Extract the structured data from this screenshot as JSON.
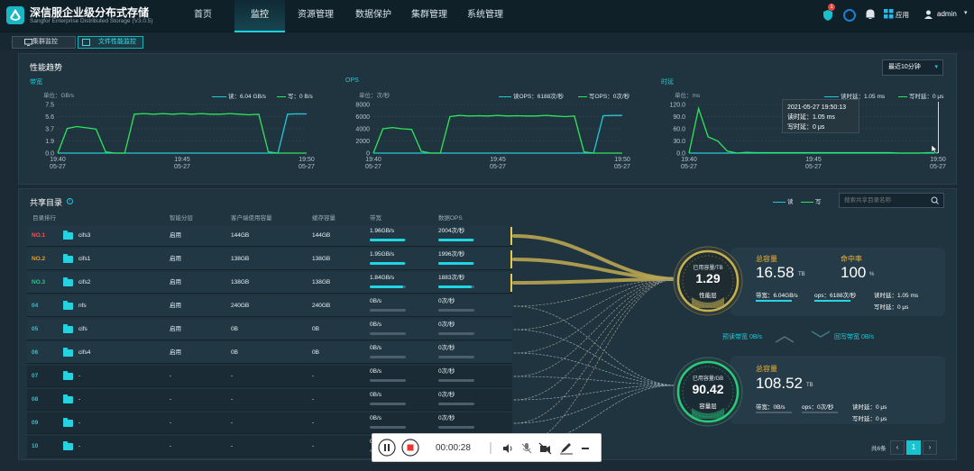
{
  "app": {
    "name": "深信服企业级分布式存储",
    "subtitle": "Sangfor Enterprise Distributed Storage (V3.0.5)"
  },
  "nav": [
    "首页",
    "监控",
    "资源管理",
    "数据保护",
    "集群管理",
    "系统管理"
  ],
  "header": {
    "badge": "1",
    "apps_label": "应用",
    "user": "admin"
  },
  "subtabs": [
    "集群监控",
    "文件性能监控"
  ],
  "perf": {
    "title": "性能趋势",
    "time_range": "最近10分钟",
    "bandwidth": {
      "label": "带宽",
      "unit": "单位：GB/s",
      "legend_read": "读：6.04 GB/s",
      "legend_write": "写：0 B/s",
      "yticks": [
        "7.5",
        "5.6",
        "3.7",
        "1.9",
        "0.0"
      ]
    },
    "ops": {
      "label": "OPS",
      "unit": "单位：次/秒",
      "legend_read": "读OPS：6188次/秒",
      "legend_write": "写OPS：0次/秒",
      "yticks": [
        "8000",
        "6000",
        "4000",
        "2000",
        "0"
      ]
    },
    "latency": {
      "label": "时延",
      "unit": "单位：ms",
      "legend_read": "读时延：1.05 ms",
      "legend_write": "写时延：0 μs",
      "yticks": [
        "120.0",
        "90.0",
        "60.0",
        "30.0",
        "0.0"
      ]
    },
    "xticks": [
      [
        "19:40",
        "05-27"
      ],
      [
        "19:45",
        "05-27"
      ],
      [
        "19:50",
        "05-27"
      ]
    ],
    "tooltip": {
      "time": "2021-05-27 19:50:13",
      "read": "读时延：1.05 ms",
      "write": "写时延：0 μs"
    },
    "colors": {
      "read": "#22c9d6",
      "write": "#2ce65b"
    }
  },
  "chart_data": [
    {
      "type": "line",
      "title": "带宽",
      "ylim": [
        0,
        7.5
      ],
      "yunit": "GB/s",
      "series": [
        {
          "name": "读",
          "values": [
            0,
            0,
            0,
            0,
            0,
            0,
            0,
            0,
            0,
            0,
            0,
            0,
            0,
            0,
            0,
            0,
            0,
            0,
            0,
            0,
            0,
            0,
            0,
            0,
            6.0,
            6.05,
            6.04
          ]
        },
        {
          "name": "写",
          "values": [
            0,
            3.8,
            4.1,
            3.9,
            3.7,
            0.2,
            0,
            0,
            6.0,
            6.1,
            6.0,
            6.1,
            6.0,
            6.1,
            6.0,
            6.1,
            6.0,
            6.0,
            6.1,
            6.0,
            5.9,
            6.0,
            0.2,
            0,
            0,
            0,
            0
          ]
        }
      ]
    },
    {
      "type": "line",
      "title": "OPS",
      "ylim": [
        0,
        8000
      ],
      "yunit": "次/秒",
      "series": [
        {
          "name": "读OPS",
          "values": [
            0,
            0,
            0,
            0,
            0,
            0,
            0,
            0,
            0,
            0,
            0,
            0,
            0,
            0,
            0,
            0,
            0,
            0,
            0,
            0,
            0,
            0,
            0,
            0,
            6150,
            6190,
            6188
          ]
        },
        {
          "name": "写OPS",
          "values": [
            0,
            4000,
            4200,
            4000,
            3900,
            300,
            0,
            0,
            6000,
            6200,
            6100,
            6150,
            6100,
            6200,
            6100,
            6150,
            6100,
            6100,
            6200,
            6100,
            6000,
            6100,
            200,
            0,
            0,
            0,
            0
          ]
        }
      ]
    },
    {
      "type": "line",
      "title": "时延",
      "ylim": [
        0,
        120
      ],
      "yunit": "ms",
      "series": [
        {
          "name": "读时延",
          "values": [
            0,
            0,
            0,
            0,
            0,
            0,
            0,
            0,
            0,
            0,
            0,
            0,
            0,
            0,
            0,
            0,
            0,
            0,
            0,
            0,
            0,
            0,
            0,
            0,
            0,
            1.1,
            1.05
          ]
        },
        {
          "name": "写时延",
          "values": [
            0,
            110,
            40,
            30,
            5,
            0,
            2,
            1,
            1,
            1,
            1,
            1,
            1,
            1,
            1,
            1,
            1,
            1,
            1,
            1,
            1,
            1,
            0,
            0,
            0,
            0,
            0
          ]
        }
      ]
    }
  ],
  "share": {
    "title": "共享目录",
    "legend_read": "读",
    "legend_write": "写",
    "search_placeholder": "搜索共享目录名称",
    "columns": [
      "目录排行",
      "",
      "智能分层",
      "客户端使用容量",
      "缓存容量",
      "带宽",
      "数据OPS"
    ],
    "rows": [
      {
        "rank": "NO.1",
        "name": "cifs3",
        "tier": "启用",
        "client": "144GB",
        "cache": "144GB",
        "bw": "1.96GB/s",
        "ops": "2004次/秒",
        "fill": 0.98
      },
      {
        "rank": "NO.2",
        "name": "cifs1",
        "tier": "启用",
        "client": "138GB",
        "cache": "138GB",
        "bw": "1.95GB/s",
        "ops": "1996次/秒",
        "fill": 0.97
      },
      {
        "rank": "NO.3",
        "name": "cifs2",
        "tier": "启用",
        "client": "138GB",
        "cache": "138GB",
        "bw": "1.84GB/s",
        "ops": "1883次/秒",
        "fill": 0.92
      },
      {
        "rank": "04",
        "name": "nfs",
        "tier": "启用",
        "client": "240GB",
        "cache": "240GB",
        "bw": "0B/s",
        "ops": "0次/秒",
        "fill": 0
      },
      {
        "rank": "05",
        "name": "cifs",
        "tier": "启用",
        "client": "0B",
        "cache": "0B",
        "bw": "0B/s",
        "ops": "0次/秒",
        "fill": 0
      },
      {
        "rank": "06",
        "name": "cifs4",
        "tier": "启用",
        "client": "0B",
        "cache": "0B",
        "bw": "0B/s",
        "ops": "0次/秒",
        "fill": 0
      },
      {
        "rank": "07",
        "name": "-",
        "tier": "-",
        "client": "-",
        "cache": "-",
        "bw": "0B/s",
        "ops": "0次/秒",
        "fill": 0
      },
      {
        "rank": "08",
        "name": "-",
        "tier": "-",
        "client": "-",
        "cache": "-",
        "bw": "0B/s",
        "ops": "0次/秒",
        "fill": 0
      },
      {
        "rank": "09",
        "name": "-",
        "tier": "-",
        "client": "-",
        "cache": "-",
        "bw": "0B/s",
        "ops": "0次/秒",
        "fill": 0
      },
      {
        "rank": "10",
        "name": "-",
        "tier": "-",
        "client": "-",
        "cache": "-",
        "bw": "0B/s",
        "ops": "0次/秒",
        "fill": 0
      }
    ]
  },
  "perf_layer": {
    "ring_label": "已用容量/TB",
    "ring_value": "1.29",
    "ring_name": "性能层",
    "total_label": "总容量",
    "total": "16.58",
    "total_unit": "TB",
    "hit_label": "命中率",
    "hit": "100",
    "hit_unit": "%",
    "bw": "带宽：6.04GB/s",
    "ops": "ops：6188次/秒",
    "read_lat": "读时延：1.05 ms",
    "write_lat": "写时延：0 μs"
  },
  "flow": {
    "prefetch": "预读带宽 0B/s",
    "writeback": "回写带宽 0B/s"
  },
  "cap_layer": {
    "ring_label": "已用容量/GB",
    "ring_value": "90.42",
    "ring_name": "容量层",
    "total_label": "总容量",
    "total": "108.52",
    "total_unit": "TB",
    "bw": "带宽：0B/s",
    "ops": "ops：0次/秒",
    "read_lat": "读时延：0 μs",
    "write_lat": "写时延：0 μs"
  },
  "pagination": {
    "total": "共6条",
    "page": "1"
  },
  "player": {
    "time": "00:00:28"
  }
}
